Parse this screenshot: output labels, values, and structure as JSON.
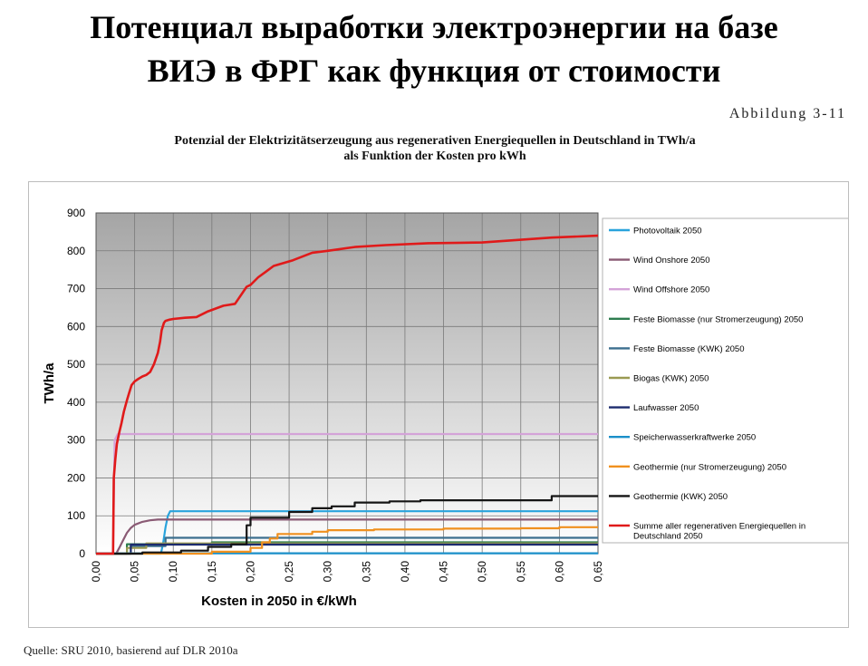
{
  "slide": {
    "title_line1": "Потенциал выработки электроэнергии на базе",
    "title_line2": "ВИЭ в ФРГ как функция от стоимости",
    "figure_label": "Abbildung 3-11",
    "source": "Quelle: SRU 2010, basierend auf DLR 2010a"
  },
  "chart_data": {
    "type": "line",
    "title_line1": "Potenzial der Elektrizitätserzeugung aus regenerativen Energiequellen in Deutschland in TWh/a",
    "title_line2": "als Funktion der Kosten pro kWh",
    "xlabel": "Kosten in 2050 in €/kWh",
    "ylabel": "TWh/a",
    "xlim": [
      0,
      0.65
    ],
    "ylim": [
      0,
      900
    ],
    "x_ticks": [
      "0,00",
      "0,05",
      "0,10",
      "0,15",
      "0,20",
      "0,25",
      "0,30",
      "0,35",
      "0,40",
      "0,45",
      "0,50",
      "0,55",
      "0,60",
      "0,65"
    ],
    "y_ticks": [
      "0",
      "100",
      "200",
      "300",
      "400",
      "500",
      "600",
      "700",
      "800",
      "900"
    ],
    "grid": true,
    "legend_position": "right",
    "series": [
      {
        "name": "Photovoltaik 2050",
        "color": "#29a3dc",
        "x": [
          0,
          0.084,
          0.087,
          0.09,
          0.093,
          0.096,
          0.65
        ],
        "y": [
          0,
          0,
          30,
          70,
          100,
          112,
          112
        ]
      },
      {
        "name": "Wind Onshore 2050",
        "color": "#8a5a74",
        "x": [
          0,
          0.026,
          0.03,
          0.035,
          0.04,
          0.045,
          0.05,
          0.06,
          0.07,
          0.08,
          0.09,
          0.1,
          0.65
        ],
        "y": [
          0,
          0,
          15,
          35,
          55,
          68,
          76,
          84,
          88,
          90,
          90,
          90,
          90
        ]
      },
      {
        "name": "Wind Offshore 2050",
        "color": "#d4a3d8",
        "x": [
          0,
          0.022,
          0.023,
          0.024,
          0.028,
          0.65
        ],
        "y": [
          0,
          0,
          150,
          300,
          316,
          316
        ]
      },
      {
        "name": "Feste Biomasse (nur Stromerzeugung) 2050",
        "color": "#2e7d4f",
        "x": [
          0,
          0.04,
          0.04,
          0.15,
          0.15,
          0.65
        ],
        "y": [
          0,
          0,
          25,
          25,
          30,
          30
        ]
      },
      {
        "name": "Feste Biomasse (KWK) 2050",
        "color": "#3c6f8e",
        "x": [
          0,
          0.045,
          0.045,
          0.09,
          0.09,
          0.65
        ],
        "y": [
          0,
          0,
          20,
          20,
          42,
          42
        ]
      },
      {
        "name": "Biogas (KWK) 2050",
        "color": "#9a9a52",
        "x": [
          0,
          0.04,
          0.04,
          0.065,
          0.065,
          0.65
        ],
        "y": [
          0,
          0,
          15,
          15,
          27,
          27
        ]
      },
      {
        "name": "Laufwasser 2050",
        "color": "#1c2b6e",
        "x": [
          0,
          0.045,
          0.045,
          0.65
        ],
        "y": [
          0,
          0,
          24,
          24
        ]
      },
      {
        "name": "Speicherwasserkraftwerke 2050",
        "color": "#1a8fc9",
        "x": [
          0,
          0.65
        ],
        "y": [
          1,
          1
        ]
      },
      {
        "name": "Geothermie (nur Stromerzeugung) 2050",
        "color": "#f0901e",
        "x": [
          0,
          0.15,
          0.15,
          0.2,
          0.2,
          0.215,
          0.215,
          0.225,
          0.225,
          0.235,
          0.235,
          0.28,
          0.28,
          0.3,
          0.3,
          0.36,
          0.36,
          0.45,
          0.45,
          0.55,
          0.55,
          0.6,
          0.6,
          0.65
        ],
        "y": [
          0,
          0,
          5,
          5,
          15,
          15,
          30,
          30,
          40,
          40,
          52,
          52,
          58,
          58,
          62,
          62,
          64,
          64,
          66,
          66,
          67,
          67,
          70,
          70
        ]
      },
      {
        "name": "Geothermie (KWK) 2050",
        "color": "#151515",
        "x": [
          0,
          0.06,
          0.06,
          0.11,
          0.11,
          0.145,
          0.145,
          0.175,
          0.175,
          0.195,
          0.195,
          0.2,
          0.2,
          0.25,
          0.25,
          0.28,
          0.28,
          0.305,
          0.305,
          0.335,
          0.335,
          0.38,
          0.38,
          0.42,
          0.42,
          0.59,
          0.59,
          0.65
        ],
        "y": [
          0,
          0,
          3,
          3,
          8,
          8,
          18,
          18,
          25,
          25,
          75,
          75,
          95,
          95,
          110,
          110,
          120,
          120,
          125,
          125,
          135,
          135,
          138,
          138,
          141,
          141,
          152,
          152
        ]
      },
      {
        "name": "Summe aller regenerativen Energiequellen in Deutschland 2050",
        "color": "#e01a1a",
        "x": [
          0,
          0.022,
          0.023,
          0.025,
          0.027,
          0.03,
          0.033,
          0.036,
          0.04,
          0.043,
          0.046,
          0.05,
          0.055,
          0.06,
          0.065,
          0.07,
          0.075,
          0.08,
          0.083,
          0.085,
          0.088,
          0.09,
          0.095,
          0.1,
          0.115,
          0.13,
          0.145,
          0.165,
          0.18,
          0.195,
          0.2,
          0.21,
          0.22,
          0.23,
          0.255,
          0.28,
          0.3,
          0.335,
          0.375,
          0.43,
          0.5,
          0.59,
          0.65
        ],
        "y": [
          0,
          0,
          200,
          250,
          290,
          320,
          345,
          375,
          405,
          425,
          445,
          455,
          462,
          468,
          472,
          480,
          500,
          530,
          560,
          590,
          610,
          615,
          618,
          620,
          623,
          625,
          640,
          655,
          660,
          705,
          710,
          730,
          745,
          760,
          775,
          795,
          800,
          810,
          815,
          820,
          822,
          835,
          840
        ]
      }
    ]
  }
}
